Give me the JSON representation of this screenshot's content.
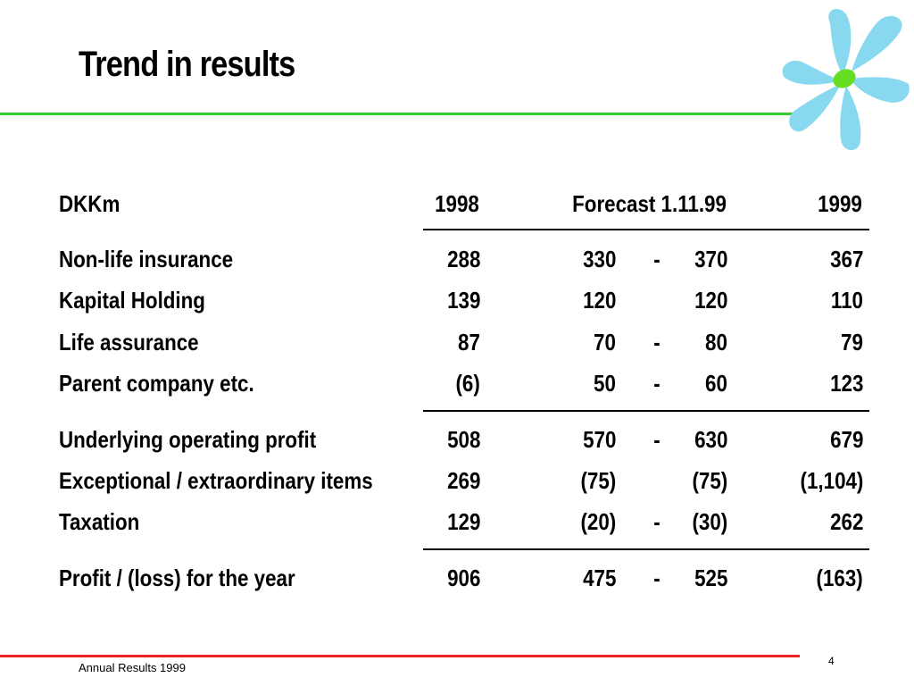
{
  "title": "Trend in results",
  "header": {
    "label": "DKKm",
    "col_1998": "1998",
    "col_forecast": "Forecast 1.11.99",
    "col_1999": "1999"
  },
  "rows": [
    {
      "label": "Non-life insurance",
      "y1998": "288",
      "f_low": "330",
      "dash": "-",
      "f_high": "370",
      "y1999": "367"
    },
    {
      "label": "Kapital Holding",
      "y1998": "139",
      "f_low": "120",
      "dash": "",
      "f_high": "120",
      "y1999": "110"
    },
    {
      "label": "Life assurance",
      "y1998": "87",
      "f_low": "70",
      "dash": "-",
      "f_high": "80",
      "y1999": "79"
    },
    {
      "label": "Parent company etc.",
      "y1998": "(6)",
      "f_low": "50",
      "dash": "-",
      "f_high": "60",
      "y1999": "123"
    },
    {
      "label": "Underlying operating profit",
      "y1998": "508",
      "f_low": "570",
      "dash": "-",
      "f_high": "630",
      "y1999": "679"
    },
    {
      "label": "Exceptional / extraordinary items",
      "y1998": "269",
      "f_low": "(75)",
      "dash": "",
      "f_high": "(75)",
      "y1999": "(1,104)"
    },
    {
      "label": "Taxation",
      "y1998": "129",
      "f_low": "(20)",
      "dash": "-",
      "f_high": "(30)",
      "y1999": "262"
    },
    {
      "label": "Profit / (loss) for the year",
      "y1998": "906",
      "f_low": "475",
      "dash": "-",
      "f_high": "525",
      "y1999": "(163)"
    }
  ],
  "footer": {
    "text": "Annual Results 1999",
    "page_number": "4"
  },
  "colors": {
    "green_rule": "#33cc33",
    "red_rule": "#ee2222",
    "logo_petals": "#88d8f0",
    "logo_center": "#66dd22"
  }
}
